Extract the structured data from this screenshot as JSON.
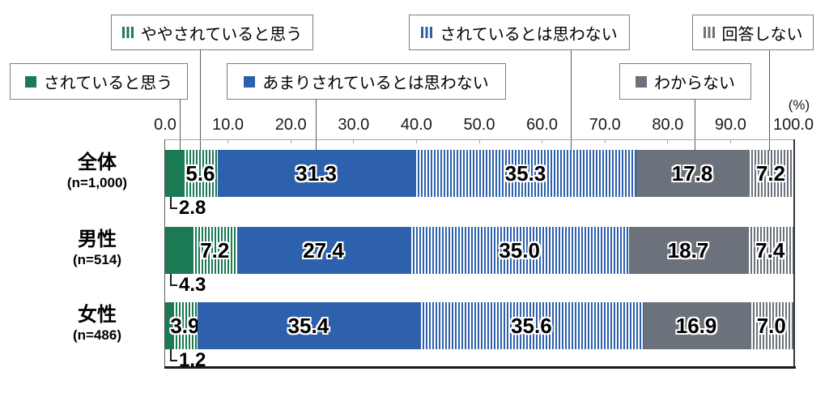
{
  "chart_data": {
    "type": "bar",
    "stacked": true,
    "orientation": "horizontal",
    "unit_label": "(%)",
    "legend_position": "top",
    "grid": false,
    "axis": {
      "min": 0,
      "max": 100,
      "tick_labels": [
        "0.0",
        "10.0",
        "20.0",
        "30.0",
        "40.0",
        "50.0",
        "60.0",
        "70.0",
        "80.0",
        "90.0",
        "100.0"
      ]
    },
    "series": [
      {
        "name": "されていると思う",
        "color": "#1b7a54",
        "pattern": "solid"
      },
      {
        "name": "ややされていると思う",
        "color": "#1b7a54",
        "pattern": "striped"
      },
      {
        "name": "あまりされているとは思わない",
        "color": "#2e61ad",
        "pattern": "solid"
      },
      {
        "name": "されているとは思わない",
        "color": "#2e61ad",
        "pattern": "striped"
      },
      {
        "name": "わからない",
        "color": "#6b727b",
        "pattern": "solid"
      },
      {
        "name": "回答しない",
        "color": "#6b727b",
        "pattern": "striped"
      }
    ],
    "rows": [
      {
        "category": "全体",
        "n_label": "(n=1,000)",
        "values": [
          2.8,
          5.6,
          31.3,
          35.3,
          17.8,
          7.2
        ]
      },
      {
        "category": "男性",
        "n_label": "(n=514)",
        "values": [
          4.3,
          7.2,
          27.4,
          35.0,
          18.7,
          7.4
        ]
      },
      {
        "category": "女性",
        "n_label": "(n=486)",
        "values": [
          1.2,
          3.9,
          35.4,
          35.6,
          16.9,
          7.0
        ]
      }
    ]
  }
}
